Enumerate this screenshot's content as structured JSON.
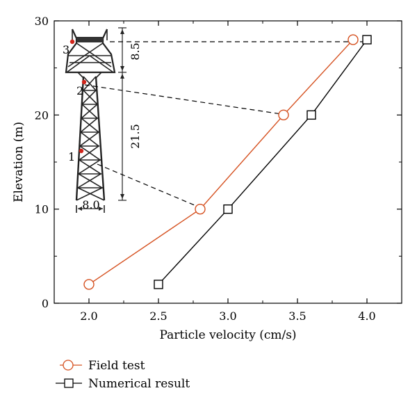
{
  "chart_data": {
    "type": "line",
    "title": "",
    "xlabel": "Particle velocity (cm/s)",
    "ylabel": "Elevation (m)",
    "xlim": [
      1.75,
      4.25
    ],
    "ylim": [
      0,
      30
    ],
    "xticks": [
      "2.0",
      "2.5",
      "3.0",
      "3.5",
      "4.0"
    ],
    "yticks": [
      "0",
      "10",
      "20",
      "30"
    ],
    "grid": false,
    "legend_position": "bottom-left",
    "series": [
      {
        "name": "Field test",
        "marker": "circle",
        "color": "#d5501f",
        "x": [
          2.0,
          2.8,
          3.4,
          3.9
        ],
        "y": [
          2,
          10,
          20,
          28
        ]
      },
      {
        "name": "Numerical result",
        "marker": "square",
        "color": "#000000",
        "x": [
          2.5,
          3.0,
          3.6,
          4.0
        ],
        "y": [
          2,
          10,
          20,
          28
        ]
      }
    ],
    "annotations": {
      "point_labels": [
        "1",
        "2",
        "3"
      ],
      "dimension_labels": [
        "8.5",
        "21.5",
        "8.0"
      ],
      "marker_color": "#d0251b"
    }
  }
}
